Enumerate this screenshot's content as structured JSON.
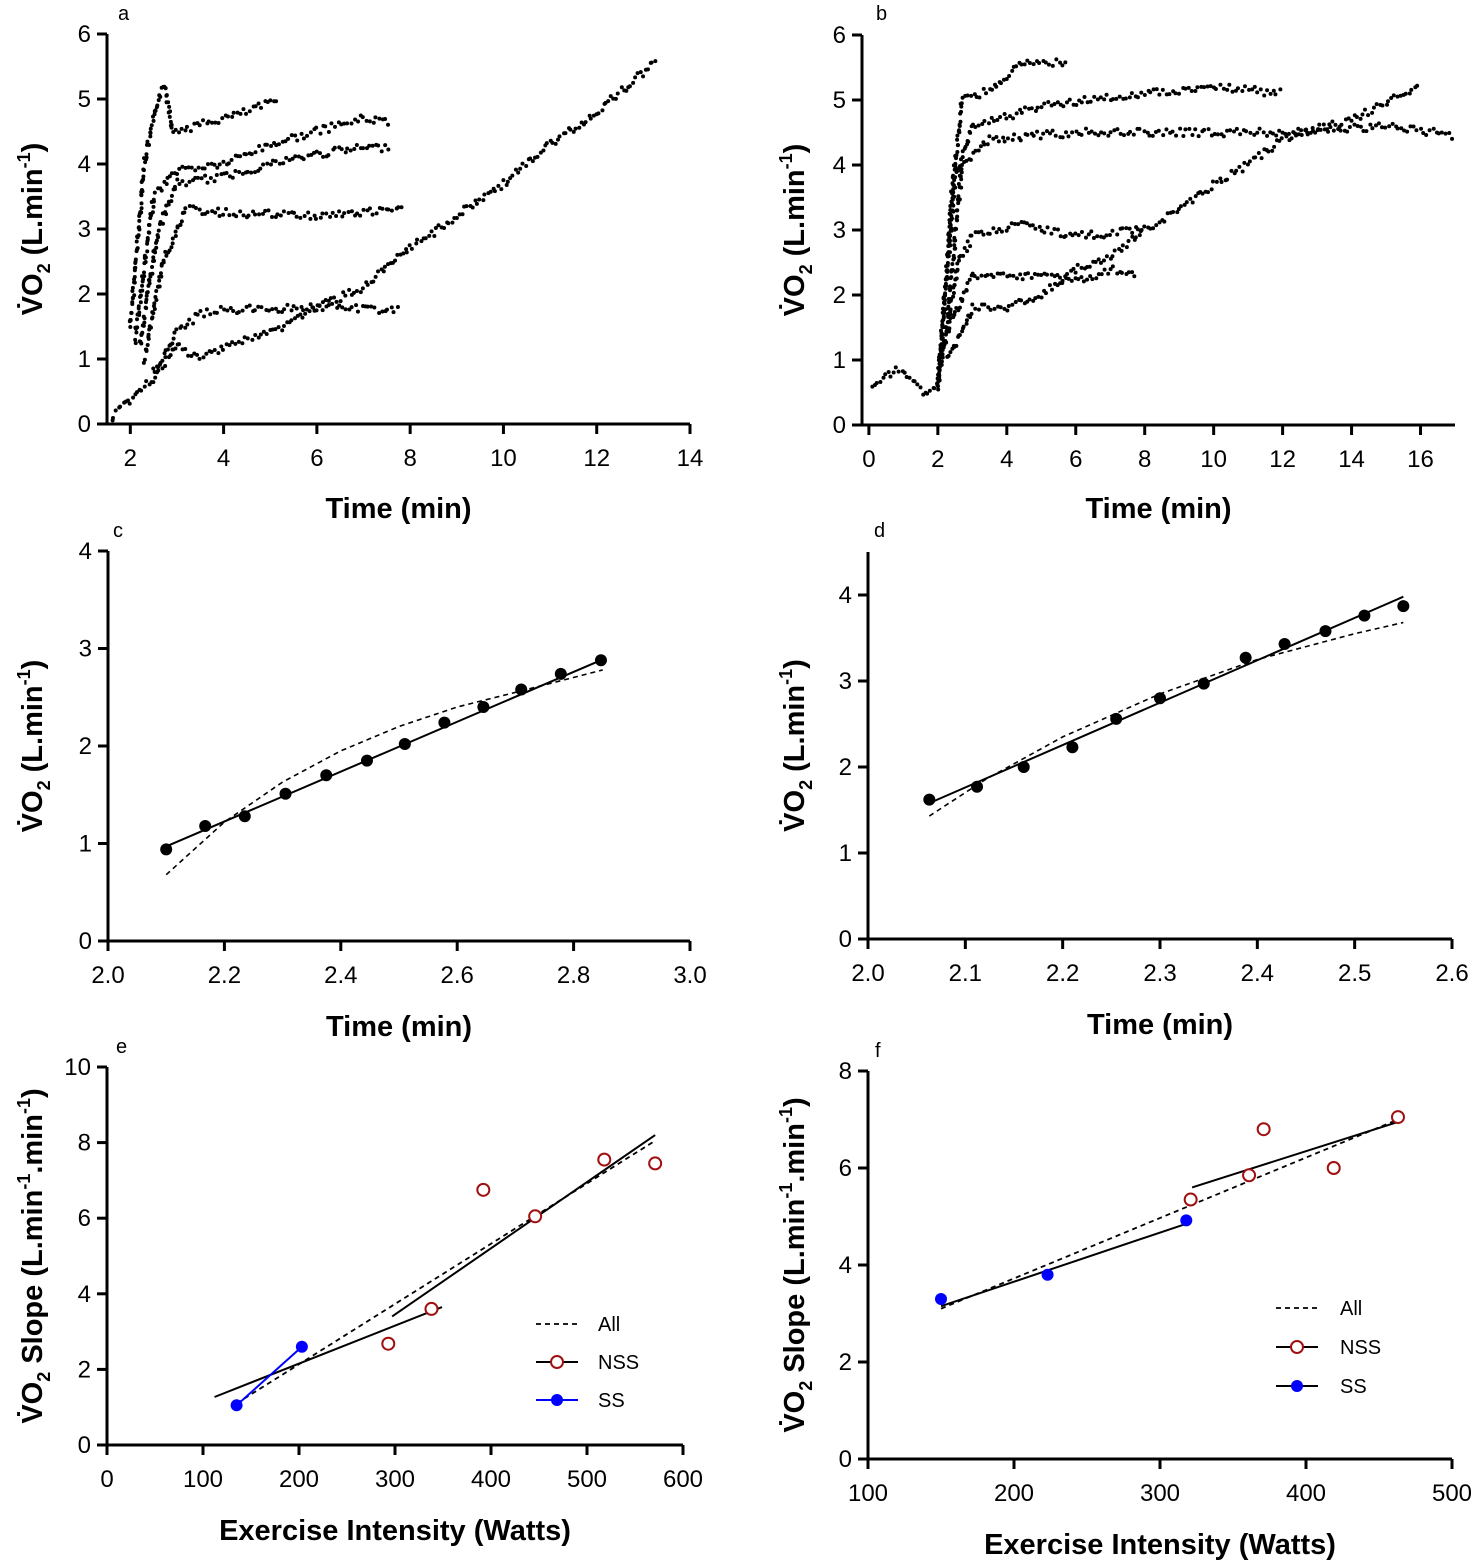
{
  "chart_data": [
    {
      "panel": "a",
      "type": "scatter",
      "xlabel": "Time (min)",
      "ylabel": {
        "v": "V̇O",
        "sub": "2",
        "units": " (L.min",
        "sup": "-1",
        "close": ")"
      },
      "xlim": [
        1.5,
        14
      ],
      "ylim": [
        0,
        6
      ],
      "xticks": [
        "2",
        "4",
        "6",
        "8",
        "10",
        "12",
        "14"
      ],
      "xtick_values": [
        2,
        4,
        6,
        8,
        10,
        12,
        14
      ],
      "yticks": [
        "0",
        "1",
        "2",
        "3",
        "4",
        "5",
        "6"
      ],
      "ytick_values": [
        0,
        1,
        2,
        3,
        4,
        5,
        6
      ],
      "traces": [
        [
          [
            2.0,
            1.5
          ],
          [
            2.3,
            4.0
          ],
          [
            2.6,
            5.0
          ],
          [
            2.75,
            5.2
          ],
          [
            2.9,
            4.5
          ],
          [
            3.5,
            4.6
          ],
          [
            4.5,
            4.8
          ],
          [
            5.2,
            5.0
          ]
        ],
        [
          [
            2.1,
            1.3
          ],
          [
            2.5,
            3.5
          ],
          [
            3.0,
            3.9
          ],
          [
            4,
            4.0
          ],
          [
            5,
            4.3
          ],
          [
            6,
            4.5
          ],
          [
            7,
            4.7
          ],
          [
            7.6,
            4.65
          ]
        ],
        [
          [
            2.2,
            1.2
          ],
          [
            2.6,
            3.0
          ],
          [
            3.0,
            3.7
          ],
          [
            4,
            3.8
          ],
          [
            5,
            4.0
          ],
          [
            6,
            4.15
          ],
          [
            7,
            4.25
          ],
          [
            7.6,
            4.25
          ]
        ],
        [
          [
            2.3,
            1.0
          ],
          [
            2.7,
            2.5
          ],
          [
            3.2,
            3.3
          ],
          [
            4,
            3.25
          ],
          [
            6,
            3.2
          ],
          [
            7,
            3.25
          ],
          [
            7.9,
            3.3
          ]
        ],
        [
          [
            2.5,
            0.8
          ],
          [
            3,
            1.4
          ],
          [
            3.5,
            1.7
          ],
          [
            4,
            1.75
          ],
          [
            6,
            1.8
          ],
          [
            7.8,
            1.75
          ]
        ],
        [
          [
            1.6,
            0.1
          ],
          [
            2.5,
            0.7
          ],
          [
            3,
            1.2
          ],
          [
            3.5,
            1.0
          ],
          [
            4,
            1.2
          ],
          [
            5,
            1.4
          ],
          [
            6,
            1.8
          ],
          [
            7,
            2.1
          ],
          [
            8,
            2.7
          ],
          [
            9,
            3.2
          ],
          [
            10,
            3.7
          ],
          [
            11,
            4.3
          ],
          [
            12,
            4.8
          ],
          [
            13.3,
            5.6
          ]
        ]
      ]
    },
    {
      "panel": "b",
      "type": "scatter",
      "xlabel": "Time (min)",
      "ylabel": {
        "v": "V̇O",
        "sub": "2",
        "units": " (L.min",
        "sup": "-1",
        "close": ")"
      },
      "xlim": [
        -0.2,
        17
      ],
      "ylim": [
        0,
        6
      ],
      "xticks": [
        "0",
        "2",
        "4",
        "6",
        "8",
        "10",
        "12",
        "14",
        "16"
      ],
      "xtick_values": [
        0,
        2,
        4,
        6,
        8,
        10,
        12,
        14,
        16
      ],
      "yticks": [
        "0",
        "1",
        "2",
        "3",
        "4",
        "5",
        "6"
      ],
      "ytick_values": [
        0,
        1,
        2,
        3,
        4,
        5,
        6
      ],
      "traces": [
        [
          [
            0.1,
            0.65
          ],
          [
            0.8,
            0.85
          ],
          [
            1.2,
            0.7
          ],
          [
            1.7,
            0.45
          ],
          [
            2.0,
            0.6
          ]
        ],
        [
          [
            2.0,
            0.6
          ],
          [
            2.4,
            3.5
          ],
          [
            2.7,
            5.0
          ],
          [
            3.5,
            5.15
          ],
          [
            4.5,
            5.6
          ],
          [
            5.8,
            5.55
          ]
        ],
        [
          [
            2.0,
            0.6
          ],
          [
            2.5,
            3.8
          ],
          [
            3.0,
            4.6
          ],
          [
            5,
            4.9
          ],
          [
            8,
            5.1
          ],
          [
            10,
            5.2
          ],
          [
            12,
            5.1
          ]
        ],
        [
          [
            2.2,
            1.2
          ],
          [
            2.7,
            4.0
          ],
          [
            3.5,
            4.4
          ],
          [
            6,
            4.5
          ],
          [
            9,
            4.5
          ],
          [
            12,
            4.5
          ],
          [
            15,
            4.6
          ],
          [
            17,
            4.45
          ]
        ],
        [
          [
            2.0,
            0.6
          ],
          [
            2.6,
            2.5
          ],
          [
            3,
            2.9
          ],
          [
            4.5,
            3.1
          ],
          [
            6,
            2.9
          ],
          [
            8,
            3.0
          ]
        ],
        [
          [
            2.3,
            1.5
          ],
          [
            3,
            2.3
          ],
          [
            5,
            2.3
          ],
          [
            6,
            2.2
          ],
          [
            7,
            2.4
          ],
          [
            7.8,
            2.3
          ]
        ],
        [
          [
            2.3,
            1.0
          ],
          [
            3,
            1.8
          ],
          [
            4,
            1.8
          ],
          [
            5,
            2.0
          ],
          [
            6,
            2.4
          ],
          [
            7,
            2.6
          ],
          [
            8,
            3.0
          ],
          [
            9,
            3.3
          ],
          [
            10,
            3.7
          ],
          [
            11,
            4.0
          ],
          [
            12,
            4.4
          ],
          [
            14,
            4.7
          ],
          [
            16,
            5.2
          ]
        ]
      ]
    },
    {
      "panel": "c",
      "type": "scatter",
      "xlabel": "Time (min)",
      "ylabel": {
        "v": "V̇O",
        "sub": "2",
        "units": " (L.min",
        "sup": "-1",
        "close": ")"
      },
      "xlim": [
        2.0,
        3.0
      ],
      "ylim": [
        0,
        4
      ],
      "xticks": [
        "2.0",
        "2.2",
        "2.4",
        "2.6",
        "2.8",
        "3.0"
      ],
      "xtick_values": [
        2.0,
        2.2,
        2.4,
        2.6,
        2.8,
        3.0
      ],
      "yticks": [
        "0",
        "1",
        "2",
        "3",
        "4"
      ],
      "ytick_values": [
        0,
        1,
        2,
        3,
        4
      ],
      "points": [
        [
          2.1,
          0.94
        ],
        [
          2.167,
          1.18
        ],
        [
          2.235,
          1.28
        ],
        [
          2.305,
          1.51
        ],
        [
          2.375,
          1.7
        ],
        [
          2.445,
          1.85
        ],
        [
          2.51,
          2.02
        ],
        [
          2.578,
          2.24
        ],
        [
          2.645,
          2.4
        ],
        [
          2.71,
          2.58
        ],
        [
          2.778,
          2.74
        ],
        [
          2.847,
          2.88
        ]
      ],
      "linear_fit": [
        [
          2.1,
          0.97
        ],
        [
          2.847,
          2.88
        ]
      ],
      "curve_fit": [
        [
          2.1,
          0.68
        ],
        [
          2.2,
          1.22
        ],
        [
          2.3,
          1.63
        ],
        [
          2.4,
          1.95
        ],
        [
          2.5,
          2.2
        ],
        [
          2.6,
          2.4
        ],
        [
          2.7,
          2.55
        ],
        [
          2.85,
          2.78
        ]
      ]
    },
    {
      "panel": "d",
      "type": "scatter",
      "xlabel": "Time (min)",
      "ylabel": {
        "v": "V̇O",
        "sub": "2",
        "units": " (L.min",
        "sup": "-1",
        "close": ")"
      },
      "xlim": [
        2.0,
        2.6
      ],
      "ylim": [
        0,
        4.5
      ],
      "xticks": [
        "2.0",
        "2.1",
        "2.2",
        "2.3",
        "2.4",
        "2.5",
        "2.6"
      ],
      "xtick_values": [
        2.0,
        2.1,
        2.2,
        2.3,
        2.4,
        2.5,
        2.6
      ],
      "yticks": [
        "0",
        "1",
        "2",
        "3",
        "4"
      ],
      "ytick_values": [
        0,
        1,
        2,
        3,
        4
      ],
      "points": [
        [
          2.063,
          1.62
        ],
        [
          2.112,
          1.77
        ],
        [
          2.16,
          2.0
        ],
        [
          2.21,
          2.23
        ],
        [
          2.255,
          2.56
        ],
        [
          2.3,
          2.8
        ],
        [
          2.345,
          2.97
        ],
        [
          2.388,
          3.27
        ],
        [
          2.428,
          3.43
        ],
        [
          2.47,
          3.58
        ],
        [
          2.51,
          3.76
        ],
        [
          2.55,
          3.87
        ]
      ],
      "linear_fit": [
        [
          2.063,
          1.58
        ],
        [
          2.55,
          3.98
        ]
      ],
      "curve_fit": [
        [
          2.063,
          1.43
        ],
        [
          2.12,
          1.85
        ],
        [
          2.2,
          2.35
        ],
        [
          2.3,
          2.85
        ],
        [
          2.4,
          3.25
        ],
        [
          2.5,
          3.55
        ],
        [
          2.55,
          3.68
        ]
      ]
    },
    {
      "panel": "e",
      "type": "scatter",
      "xlabel": "Exercise Intensity (Watts)",
      "ylabel": {
        "v": "V̇O",
        "sub": "2",
        "units": " Slope (L.min",
        "sup": "-1",
        "close": ".min",
        "sup2": "-1",
        "close2": ")"
      },
      "xlim": [
        0,
        600
      ],
      "ylim": [
        0,
        10
      ],
      "xticks": [
        "0",
        "100",
        "200",
        "300",
        "400",
        "500",
        "600"
      ],
      "xtick_values": [
        0,
        100,
        200,
        300,
        400,
        500,
        600
      ],
      "yticks": [
        "0",
        "2",
        "4",
        "6",
        "8",
        "10"
      ],
      "ytick_values": [
        0,
        2,
        4,
        6,
        8,
        10
      ],
      "legend": [
        "All",
        "NSS",
        "SS"
      ],
      "legend_placement": "bottom-right",
      "ss": [
        [
          135,
          1.05
        ],
        [
          203,
          2.6
        ]
      ],
      "nss": [
        [
          293,
          2.68
        ],
        [
          338,
          3.6
        ],
        [
          392,
          6.75
        ],
        [
          446,
          6.05
        ],
        [
          518,
          7.55
        ],
        [
          571,
          7.45
        ]
      ],
      "ss_line_color": "#0000ff",
      "fit_lines": [
        [
          [
            112,
            1.27
          ],
          [
            349,
            3.65
          ]
        ],
        [
          [
            297,
            3.4
          ],
          [
            571,
            8.2
          ]
        ]
      ],
      "all_fit": [
        [
          135,
          1.1
        ],
        [
          571,
          8.05
        ]
      ]
    },
    {
      "panel": "f",
      "type": "scatter",
      "xlabel": "Exercise Intensity (Watts)",
      "ylabel": {
        "v": "V̇O",
        "sub": "2",
        "units": " Slope (L.min",
        "sup": "-1",
        "close": ".min",
        "sup2": "-1",
        "close2": ")"
      },
      "xlim": [
        100,
        500
      ],
      "ylim": [
        0,
        8
      ],
      "xticks": [
        "100",
        "200",
        "300",
        "400",
        "500"
      ],
      "xtick_values": [
        100,
        200,
        300,
        400,
        500
      ],
      "yticks": [
        "0",
        "2",
        "4",
        "6",
        "8"
      ],
      "ytick_values": [
        0,
        2,
        4,
        6,
        8
      ],
      "legend": [
        "All",
        "NSS",
        "SS"
      ],
      "legend_placement": "bottom-right",
      "ss": [
        [
          150,
          3.3
        ],
        [
          223,
          3.8
        ],
        [
          318,
          4.92
        ]
      ],
      "nss": [
        [
          321,
          5.35
        ],
        [
          361,
          5.85
        ],
        [
          371,
          6.8
        ],
        [
          419,
          6.0
        ],
        [
          463,
          7.05
        ]
      ],
      "ss_line_color": "#000000",
      "fit_lines": [
        [
          [
            150,
            3.15
          ],
          [
            318,
            4.85
          ]
        ],
        [
          [
            322,
            5.6
          ],
          [
            463,
            6.95
          ]
        ]
      ],
      "all_fit": [
        [
          150,
          3.1
        ],
        [
          463,
          7.0
        ]
      ]
    }
  ],
  "colors": {
    "ss": "#0000ff",
    "nss": "#a01010",
    "ink": "#000000"
  }
}
